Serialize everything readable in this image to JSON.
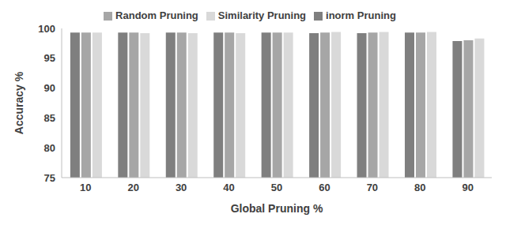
{
  "chart_data": {
    "type": "bar",
    "x_label": "Global Pruning %",
    "y_label": "Accuracy %",
    "categories": [
      "10",
      "20",
      "30",
      "40",
      "50",
      "60",
      "70",
      "80",
      "90"
    ],
    "series": [
      {
        "name": "inorm Pruning",
        "color": "#7f7f7f",
        "values": [
          99.3,
          99.3,
          99.3,
          99.3,
          99.3,
          99.2,
          99.2,
          99.3,
          97.9
        ]
      },
      {
        "name": "Random Pruning",
        "color": "#a6a6a6",
        "values": [
          99.3,
          99.3,
          99.3,
          99.3,
          99.3,
          99.3,
          99.3,
          99.3,
          98.0
        ]
      },
      {
        "name": "Similarity Pruning",
        "color": "#d9d9d9",
        "values": [
          99.3,
          99.2,
          99.2,
          99.2,
          99.3,
          99.4,
          99.4,
          99.4,
          98.3
        ]
      }
    ],
    "ylim": [
      75,
      100
    ],
    "yticks": [
      75,
      80,
      85,
      90,
      95,
      100
    ],
    "grid": false,
    "legend": "top"
  }
}
